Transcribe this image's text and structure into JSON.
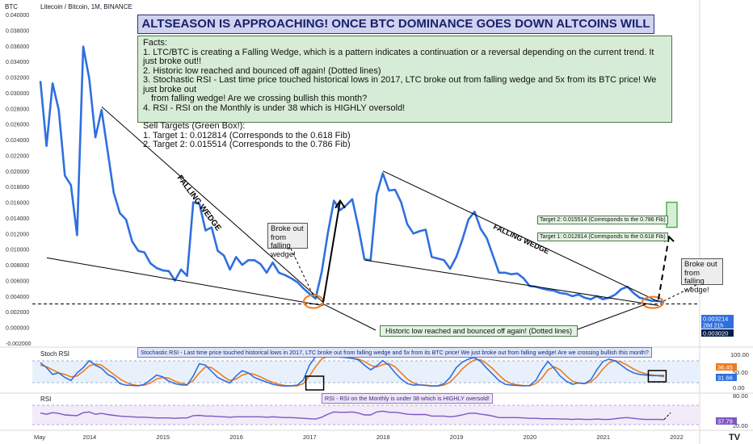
{
  "header": {
    "symbol_title": "Litecoin / Bitcoin, 1M, BINANCE",
    "currency": "BTC"
  },
  "headline": "ALTSEASON IS APPROACHING! ONCE BTC DOMINANCE GOES DOWN ALTCOINS WILL SKYROCKET!",
  "facts": {
    "title": "Facts:",
    "lines": [
      "1. LTC/BTC is creating a Falling Wedge, which is a pattern indicates a continuation or a reversal depending on the current trend. It just broke out!!",
      "2. Historic low reached and bounced off again! (Dotted lines)",
      "3. Stochastic RSI - Last time price touched historical lows in 2017, LTC broke out from falling wedge and 5x from its BTC price! We just broke out",
      "   from falling wedge! Are we crossing bullish this month?",
      "4. RSI - RSI on the Monthly is under 38 which is HIGHLY oversold!",
      "",
      "Sell Targets (Green Box!):",
      "1. Target 1: 0.012814 (Corresponds to the 0.618 Fib)",
      "2. Target 2: 0.015514 (Corresponds to the 0.786 Fib)"
    ]
  },
  "annotations": {
    "wedge1": "FALLING WEDGE",
    "wedge2": "FALLING WEDGE",
    "breakout1": "Broke out from falling wedge!",
    "breakout2": "Broke out from falling wedge!",
    "historic_low": "Historic low reached and bounced off again! (Dotted lines)",
    "target2": "Target 2: 0.015514 (Corresponds to the 0.786 Fib)",
    "target1": "Target 1: 0.012814 (Corresponds to the 0.618 Fib)"
  },
  "price_axis": {
    "ticks": [
      "0.040000",
      "0.038000",
      "0.036000",
      "0.034000",
      "0.032000",
      "0.030000",
      "0.028000",
      "0.026000",
      "0.024000",
      "0.022000",
      "0.020000",
      "0.018000",
      "0.016000",
      "0.014000",
      "0.012000",
      "0.010000",
      "0.008000",
      "0.006000",
      "0.004000",
      "0.002000",
      "0.000000",
      "-0.002000"
    ],
    "current_price": "0.003214",
    "countdown": "28d 21h",
    "low_label": "0.003020"
  },
  "stoch": {
    "label": "Stoch RSI",
    "note": "Stochastic RSI - Last time price touched historical lows in 2017, LTC broke out from falling wedge and 5x from its BTC price! We just broke out from falling wedge! Are we crossing bullish this month?",
    "ticks": [
      "100.00",
      "50.00",
      "0.00"
    ],
    "value_k": "36.45",
    "value_d": "31.66"
  },
  "rsi": {
    "label": "RSI",
    "note": "RSI - RSI on the Monthly is under 38 which is HIGHLY oversold!",
    "ticks": [
      "80.00",
      "20.00"
    ],
    "value": "37.79"
  },
  "time_axis": [
    "May",
    "2014",
    "2015",
    "2016",
    "2017",
    "2018",
    "2019",
    "2020",
    "2021",
    "2022"
  ],
  "colors": {
    "price": "#2f6fe0",
    "stoch_k": "#2f6fe0",
    "stoch_d": "#f07b1f",
    "rsi": "#7e57c2",
    "target": "#4caf50"
  },
  "chart_data": {
    "type": "line",
    "title": "Litecoin / Bitcoin, 1M, BINANCE",
    "x_range": [
      "2013-05",
      "2021-11"
    ],
    "ylim": [
      -0.002,
      0.04
    ],
    "series": [
      {
        "name": "LTC/BTC",
        "x": [
          "2013-05",
          "2013-06",
          "2013-07",
          "2013-08",
          "2013-09",
          "2013-10",
          "2013-11",
          "2013-12",
          "2014-01",
          "2014-02",
          "2014-03",
          "2014-04",
          "2014-05",
          "2014-06",
          "2014-07",
          "2014-08",
          "2014-09",
          "2014-10",
          "2014-11",
          "2014-12",
          "2015-01",
          "2015-02",
          "2015-03",
          "2015-04",
          "2015-05",
          "2015-06",
          "2015-07",
          "2015-08",
          "2015-09",
          "2015-10",
          "2015-11",
          "2015-12",
          "2016-01",
          "2016-02",
          "2016-03",
          "2016-04",
          "2016-05",
          "2016-06",
          "2016-07",
          "2016-08",
          "2016-09",
          "2016-10",
          "2016-11",
          "2016-12",
          "2017-01",
          "2017-02",
          "2017-03",
          "2017-04",
          "2017-05",
          "2017-06",
          "2017-07",
          "2017-08",
          "2017-09",
          "2017-10",
          "2017-11",
          "2017-12",
          "2018-01",
          "2018-02",
          "2018-03",
          "2018-04",
          "2018-05",
          "2018-06",
          "2018-07",
          "2018-08",
          "2018-09",
          "2018-10",
          "2018-11",
          "2018-12",
          "2019-01",
          "2019-02",
          "2019-03",
          "2019-04",
          "2019-05",
          "2019-06",
          "2019-07",
          "2019-08",
          "2019-09",
          "2019-10",
          "2019-11",
          "2019-12",
          "2020-01",
          "2020-02",
          "2020-03",
          "2020-04",
          "2020-05",
          "2020-06",
          "2020-07",
          "2020-08",
          "2020-09",
          "2020-10",
          "2020-11",
          "2020-12",
          "2021-01",
          "2021-02",
          "2021-03",
          "2021-04",
          "2021-05",
          "2021-06",
          "2021-07",
          "2021-08",
          "2021-09",
          "2021-10",
          "2021-11"
        ],
        "values": [
          0.0315,
          0.0232,
          0.0312,
          0.0278,
          0.0194,
          0.0182,
          0.0118,
          0.0359,
          0.0318,
          0.0243,
          0.0278,
          0.0225,
          0.0172,
          0.0146,
          0.0138,
          0.011,
          0.0098,
          0.0096,
          0.0082,
          0.0076,
          0.0073,
          0.0072,
          0.006,
          0.0074,
          0.0066,
          0.016,
          0.0158,
          0.0124,
          0.0128,
          0.0098,
          0.0092,
          0.0074,
          0.009,
          0.008,
          0.0086,
          0.0086,
          0.0081,
          0.007,
          0.0083,
          0.007,
          0.0067,
          0.0063,
          0.0058,
          0.005,
          0.0043,
          0.0037,
          0.0071,
          0.012,
          0.0162,
          0.015,
          0.0156,
          0.0164,
          0.0128,
          0.0087,
          0.0086,
          0.017,
          0.0197,
          0.0175,
          0.0176,
          0.016,
          0.0132,
          0.012,
          0.0123,
          0.0125,
          0.009,
          0.0088,
          0.0086,
          0.0075,
          0.009,
          0.0112,
          0.0138,
          0.0148,
          0.0126,
          0.0114,
          0.0092,
          0.007,
          0.007,
          0.0068,
          0.0069,
          0.0063,
          0.0053,
          0.0052,
          0.005,
          0.0048,
          0.0047,
          0.0044,
          0.0043,
          0.004,
          0.0042,
          0.0038,
          0.0036,
          0.004,
          0.0036,
          0.0038,
          0.0042,
          0.0049,
          0.0052,
          0.0044,
          0.0038,
          0.0036,
          0.0034,
          0.0034,
          0.0032
        ]
      }
    ],
    "stoch_rsi": {
      "k": [
        78,
        62,
        40,
        45,
        30,
        20,
        45,
        62,
        85,
        70,
        60,
        40,
        30,
        10,
        5,
        4,
        3,
        8,
        22,
        38,
        32,
        18,
        10,
        6,
        5,
        35,
        75,
        70,
        50,
        30,
        20,
        12,
        35,
        52,
        45,
        30,
        22,
        15,
        8,
        4,
        2,
        3,
        5,
        22,
        70,
        98,
        100,
        100,
        98,
        96,
        95,
        92,
        88,
        70,
        55,
        68,
        85,
        70,
        45,
        25,
        10,
        5,
        6,
        4,
        2,
        3,
        10,
        30,
        62,
        80,
        90,
        95,
        82,
        60,
        40,
        20,
        8,
        5,
        4,
        3,
        4,
        20,
        55,
        82,
        60,
        35,
        18,
        8,
        12,
        10,
        22,
        55,
        82,
        90,
        84,
        70,
        55,
        45,
        40,
        38,
        36,
        36,
        36.45
      ],
      "d": [
        70,
        65,
        55,
        45,
        40,
        32,
        35,
        50,
        68,
        74,
        70,
        55,
        40,
        25,
        14,
        7,
        4,
        5,
        12,
        25,
        30,
        28,
        18,
        11,
        7,
        20,
        45,
        65,
        62,
        48,
        32,
        20,
        25,
        38,
        44,
        40,
        32,
        22,
        14,
        8,
        4,
        3,
        3,
        10,
        35,
        65,
        90,
        99,
        99,
        97,
        96,
        93,
        90,
        82,
        70,
        64,
        72,
        75,
        65,
        45,
        25,
        12,
        6,
        5,
        3,
        2,
        5,
        15,
        35,
        58,
        75,
        88,
        88,
        75,
        58,
        38,
        20,
        10,
        6,
        4,
        3,
        10,
        28,
        55,
        65,
        55,
        35,
        18,
        12,
        10,
        15,
        32,
        58,
        78,
        85,
        80,
        70,
        58,
        48,
        42,
        38,
        36,
        31.66
      ]
    },
    "rsi": {
      "values": [
        55,
        52,
        56,
        54,
        50,
        49,
        48,
        56,
        58,
        52,
        54,
        51,
        49,
        47,
        46,
        45,
        44,
        44,
        43,
        42,
        42,
        42,
        41,
        42,
        42,
        48,
        49,
        47,
        47,
        46,
        45,
        44,
        45,
        45,
        45,
        45,
        45,
        44,
        45,
        44,
        43,
        43,
        42,
        41,
        40,
        39,
        44,
        52,
        58,
        57,
        57,
        58,
        55,
        50,
        50,
        58,
        60,
        57,
        57,
        55,
        52,
        51,
        51,
        51,
        47,
        47,
        47,
        45,
        47,
        50,
        54,
        55,
        52,
        50,
        47,
        43,
        43,
        43,
        43,
        42,
        41,
        41,
        40,
        40,
        40,
        39,
        39,
        38,
        39,
        38,
        38,
        39,
        38,
        38,
        40,
        42,
        43,
        41,
        39,
        38,
        38,
        38,
        37.79
      ]
    }
  }
}
